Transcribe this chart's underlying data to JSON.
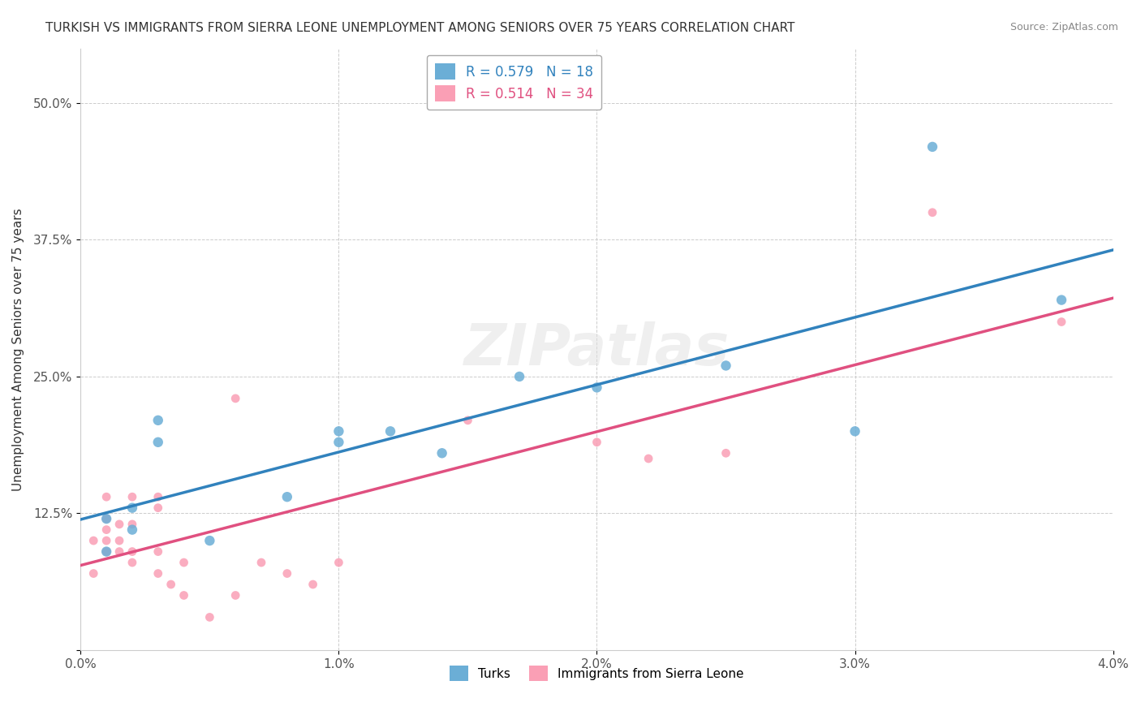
{
  "title": "TURKISH VS IMMIGRANTS FROM SIERRA LEONE UNEMPLOYMENT AMONG SENIORS OVER 75 YEARS CORRELATION CHART",
  "source": "Source: ZipAtlas.com",
  "ylabel": "Unemployment Among Seniors over 75 years",
  "xlabel": "",
  "xlim": [
    0.0,
    0.04
  ],
  "ylim": [
    0.0,
    0.55
  ],
  "xticks": [
    0.0,
    0.01,
    0.02,
    0.03,
    0.04
  ],
  "yticks": [
    0.0,
    0.125,
    0.25,
    0.375,
    0.5
  ],
  "xticklabels": [
    "0.0%",
    "1.0%",
    "2.0%",
    "3.0%",
    "4.0%"
  ],
  "yticklabels": [
    "",
    "12.5%",
    "25.0%",
    "37.5%",
    "50.0%"
  ],
  "legend_blue_label": "R = 0.579   N = 18",
  "legend_pink_label": "R = 0.514   N = 34",
  "legend_blue_series": "Turks",
  "legend_pink_series": "Immigrants from Sierra Leone",
  "blue_color": "#6baed6",
  "pink_color": "#fa9fb5",
  "blue_line_color": "#3182bd",
  "pink_line_color": "#e05080",
  "watermark": "ZIPatlas",
  "blue_points": [
    [
      0.001,
      0.09
    ],
    [
      0.001,
      0.12
    ],
    [
      0.002,
      0.11
    ],
    [
      0.002,
      0.13
    ],
    [
      0.003,
      0.19
    ],
    [
      0.003,
      0.21
    ],
    [
      0.005,
      0.1
    ],
    [
      0.008,
      0.14
    ],
    [
      0.01,
      0.19
    ],
    [
      0.01,
      0.2
    ],
    [
      0.012,
      0.2
    ],
    [
      0.014,
      0.18
    ],
    [
      0.017,
      0.25
    ],
    [
      0.02,
      0.24
    ],
    [
      0.025,
      0.26
    ],
    [
      0.03,
      0.2
    ],
    [
      0.033,
      0.46
    ],
    [
      0.038,
      0.32
    ]
  ],
  "pink_points": [
    [
      0.0005,
      0.07
    ],
    [
      0.0005,
      0.1
    ],
    [
      0.001,
      0.09
    ],
    [
      0.001,
      0.1
    ],
    [
      0.001,
      0.11
    ],
    [
      0.001,
      0.12
    ],
    [
      0.001,
      0.14
    ],
    [
      0.0015,
      0.09
    ],
    [
      0.0015,
      0.1
    ],
    [
      0.0015,
      0.115
    ],
    [
      0.002,
      0.08
    ],
    [
      0.002,
      0.09
    ],
    [
      0.002,
      0.115
    ],
    [
      0.002,
      0.14
    ],
    [
      0.003,
      0.07
    ],
    [
      0.003,
      0.09
    ],
    [
      0.003,
      0.13
    ],
    [
      0.003,
      0.14
    ],
    [
      0.0035,
      0.06
    ],
    [
      0.004,
      0.05
    ],
    [
      0.004,
      0.08
    ],
    [
      0.005,
      0.03
    ],
    [
      0.006,
      0.05
    ],
    [
      0.006,
      0.23
    ],
    [
      0.007,
      0.08
    ],
    [
      0.008,
      0.07
    ],
    [
      0.009,
      0.06
    ],
    [
      0.01,
      0.08
    ],
    [
      0.015,
      0.21
    ],
    [
      0.02,
      0.19
    ],
    [
      0.022,
      0.175
    ],
    [
      0.025,
      0.18
    ],
    [
      0.033,
      0.4
    ],
    [
      0.038,
      0.3
    ]
  ],
  "blue_point_sizes": [
    80,
    80,
    80,
    80,
    80,
    80,
    80,
    80,
    80,
    80,
    80,
    80,
    80,
    80,
    80,
    80,
    80,
    80
  ],
  "pink_point_sizes": [
    60,
    60,
    60,
    60,
    60,
    60,
    60,
    60,
    60,
    60,
    60,
    60,
    60,
    60,
    60,
    60,
    60,
    60,
    60,
    60,
    60,
    60,
    60,
    60,
    60,
    60,
    60,
    60,
    60,
    60,
    60,
    60,
    60,
    60
  ],
  "background_color": "#ffffff",
  "plot_background": "#ffffff",
  "grid_color": "#cccccc"
}
